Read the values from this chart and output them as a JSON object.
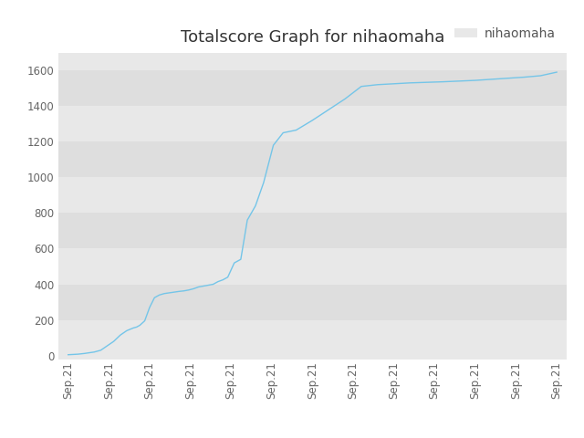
{
  "title": "Totalscore Graph for nihaomaha",
  "legend_label": "nihaomaha",
  "line_color": "#74c5e8",
  "background_color": "#ffffff",
  "plot_bg_color": "#e8e8e8",
  "stripe_color_light": "#eeeeee",
  "stripe_color_dark": "#e0e0e0",
  "ylim": [
    -20,
    1700
  ],
  "yticks": [
    0,
    200,
    400,
    600,
    800,
    1000,
    1200,
    1400,
    1600
  ],
  "x_data": [
    0,
    0.3,
    0.5,
    0.8,
    1.0,
    1.2,
    1.4,
    1.6,
    1.8,
    2.0,
    2.1,
    2.2,
    2.35,
    2.5,
    2.65,
    2.8,
    2.95,
    3.1,
    3.25,
    3.4,
    3.55,
    3.7,
    3.85,
    4.0,
    4.15,
    4.3,
    4.45,
    4.6,
    4.75,
    4.9,
    5.1,
    5.3,
    5.5,
    5.75,
    6.0,
    6.3,
    6.6,
    7.0,
    7.5,
    8.0,
    8.5,
    9.0,
    9.5,
    10.0,
    10.5,
    11.0,
    11.5,
    12.0,
    12.5,
    13.0,
    13.5,
    14.0,
    14.5,
    15.0
  ],
  "y_data": [
    5,
    8,
    12,
    20,
    30,
    55,
    80,
    115,
    140,
    155,
    160,
    170,
    195,
    270,
    325,
    340,
    348,
    352,
    356,
    360,
    363,
    368,
    375,
    385,
    390,
    395,
    400,
    415,
    425,
    440,
    520,
    540,
    760,
    840,
    970,
    1180,
    1250,
    1265,
    1320,
    1380,
    1440,
    1510,
    1520,
    1525,
    1530,
    1533,
    1536,
    1540,
    1544,
    1550,
    1556,
    1562,
    1570,
    1590
  ],
  "num_xticks": 13,
  "title_fontsize": 13,
  "tick_fontsize": 8.5,
  "legend_fontsize": 10
}
